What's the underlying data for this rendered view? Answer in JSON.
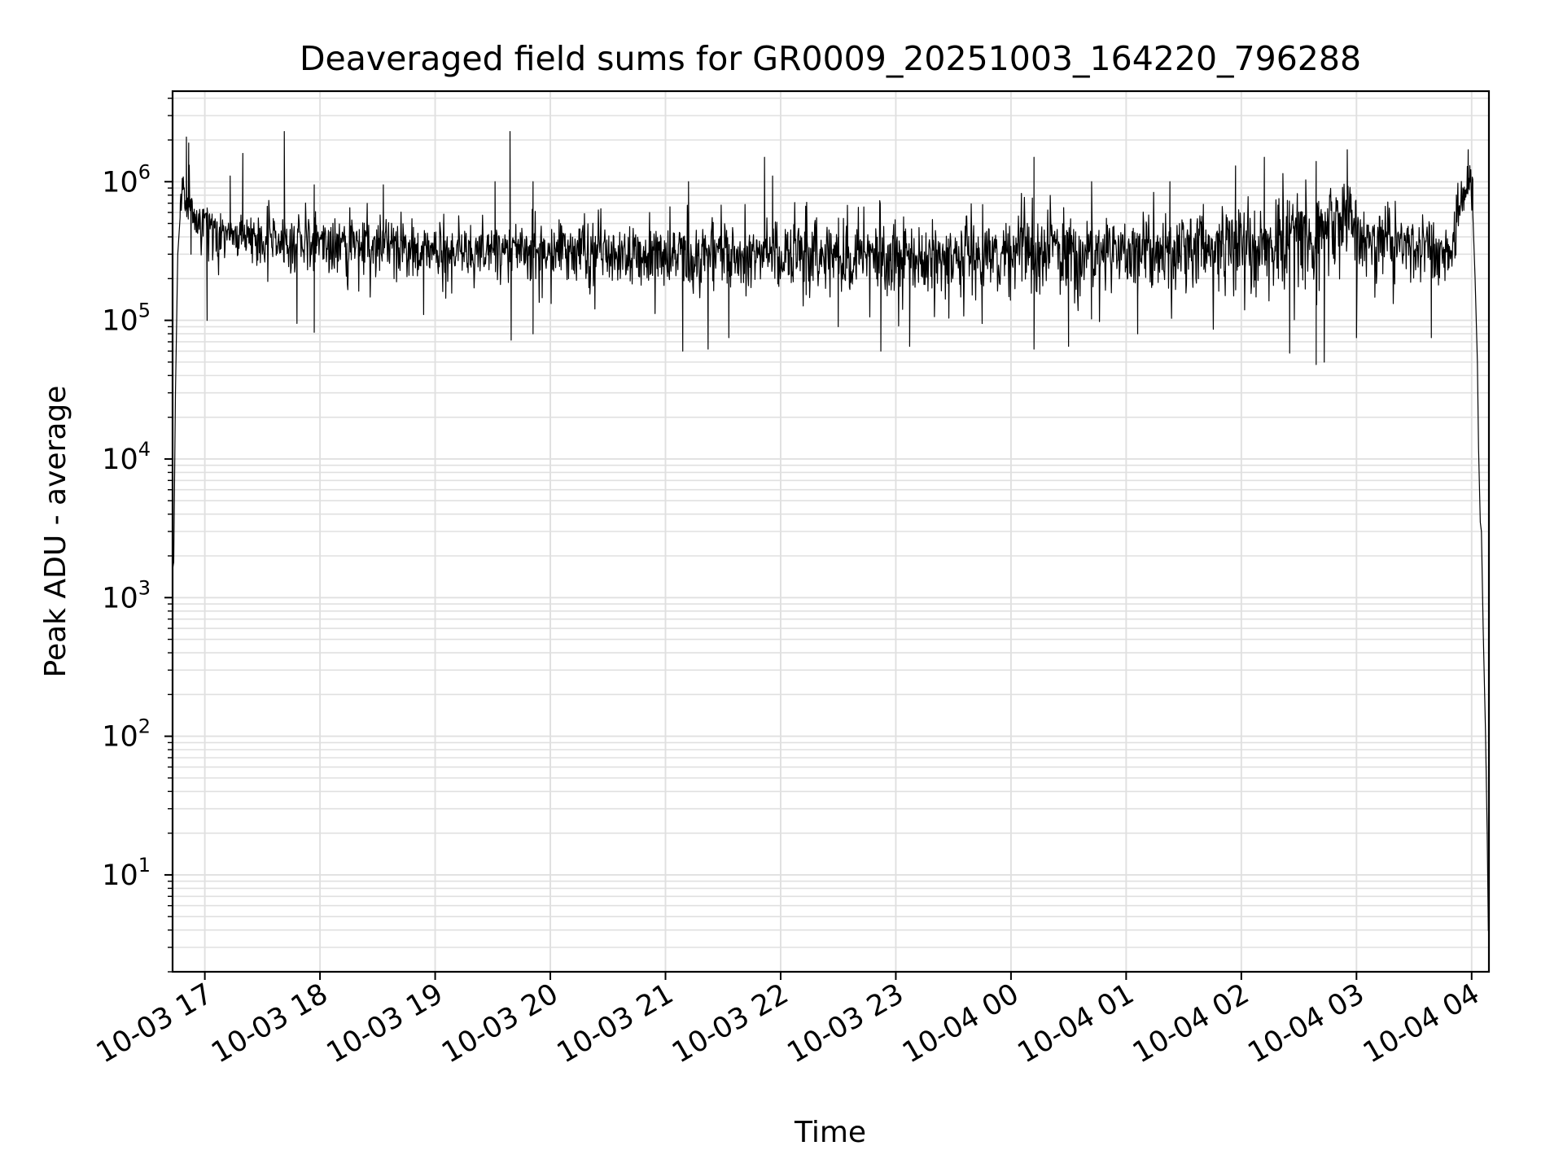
{
  "chart_data": {
    "type": "line",
    "title": "Deaveraged field sums for GR0009_20251003_164220_796288",
    "xlabel": "Time",
    "ylabel": "Peak ADU - average",
    "yscale": "log",
    "ylim": [
      2,
      4500000
    ],
    "xlim_hours": [
      16.72,
      28.15
    ],
    "grid": true,
    "line_color": "#000000",
    "grid_color": "#e0e0e0",
    "x_ticks": [
      {
        "hour": 17,
        "label": "10-03 17"
      },
      {
        "hour": 18,
        "label": "10-03 18"
      },
      {
        "hour": 19,
        "label": "10-03 19"
      },
      {
        "hour": 20,
        "label": "10-03 20"
      },
      {
        "hour": 21,
        "label": "10-03 21"
      },
      {
        "hour": 22,
        "label": "10-03 22"
      },
      {
        "hour": 23,
        "label": "10-03 23"
      },
      {
        "hour": 24,
        "label": "10-04 00"
      },
      {
        "hour": 25,
        "label": "10-04 01"
      },
      {
        "hour": 26,
        "label": "10-04 02"
      },
      {
        "hour": 27,
        "label": "10-04 03"
      },
      {
        "hour": 28,
        "label": "10-04 04"
      }
    ],
    "y_ticks": [
      {
        "value": 10,
        "base": "10",
        "exp": "1"
      },
      {
        "value": 100,
        "base": "10",
        "exp": "2"
      },
      {
        "value": 1000,
        "base": "10",
        "exp": "3"
      },
      {
        "value": 10000,
        "base": "10",
        "exp": "4"
      },
      {
        "value": 100000,
        "base": "10",
        "exp": "5"
      },
      {
        "value": 1000000,
        "base": "10",
        "exp": "6"
      }
    ],
    "series": [
      {
        "name": "deaveraged field sum",
        "start_ramp": [
          {
            "t": 16.72,
            "v": 1600
          },
          {
            "t": 16.73,
            "v": 1800
          },
          {
            "t": 16.745,
            "v": 30000
          },
          {
            "t": 16.765,
            "v": 300000
          },
          {
            "t": 16.785,
            "v": 550000
          }
        ],
        "envelope": [
          {
            "t": 16.8,
            "median": 900000,
            "low": 500000,
            "high": 2000000
          },
          {
            "t": 16.9,
            "median": 550000,
            "low": 250000,
            "high": 1000000
          },
          {
            "t": 17.3,
            "median": 400000,
            "low": 180000,
            "high": 700000
          },
          {
            "t": 18.0,
            "median": 380000,
            "low": 170000,
            "high": 700000
          },
          {
            "t": 19.0,
            "median": 330000,
            "low": 140000,
            "high": 600000
          },
          {
            "t": 20.0,
            "median": 320000,
            "low": 140000,
            "high": 600000
          },
          {
            "t": 21.0,
            "median": 300000,
            "low": 120000,
            "high": 650000
          },
          {
            "t": 22.0,
            "median": 300000,
            "low": 120000,
            "high": 650000
          },
          {
            "t": 23.0,
            "median": 290000,
            "low": 100000,
            "high": 700000
          },
          {
            "t": 24.0,
            "median": 300000,
            "low": 100000,
            "high": 750000
          },
          {
            "t": 25.0,
            "median": 310000,
            "low": 110000,
            "high": 800000
          },
          {
            "t": 26.0,
            "median": 350000,
            "low": 100000,
            "high": 1000000
          },
          {
            "t": 26.6,
            "median": 420000,
            "low": 90000,
            "high": 1100000
          },
          {
            "t": 26.95,
            "median": 600000,
            "low": 200000,
            "high": 1300000
          },
          {
            "t": 27.05,
            "median": 380000,
            "low": 150000,
            "high": 700000
          },
          {
            "t": 27.8,
            "median": 330000,
            "low": 130000,
            "high": 650000
          },
          {
            "t": 27.95,
            "median": 900000,
            "low": 500000,
            "high": 1500000
          },
          {
            "t": 28.0,
            "median": 1000000,
            "low": 600000,
            "high": 1600000
          }
        ],
        "spikes": [
          {
            "t": 16.84,
            "v": 2100000
          },
          {
            "t": 16.86,
            "v": 1900000
          },
          {
            "t": 17.22,
            "v": 1100000
          },
          {
            "t": 17.33,
            "v": 1600000
          },
          {
            "t": 17.69,
            "v": 2300000
          },
          {
            "t": 17.95,
            "v": 950000
          },
          {
            "t": 18.55,
            "v": 950000
          },
          {
            "t": 19.52,
            "v": 1000000
          },
          {
            "t": 19.65,
            "v": 2300000
          },
          {
            "t": 19.85,
            "v": 1000000
          },
          {
            "t": 21.2,
            "v": 1000000
          },
          {
            "t": 21.86,
            "v": 1500000
          },
          {
            "t": 21.93,
            "v": 1100000
          },
          {
            "t": 24.2,
            "v": 1500000
          },
          {
            "t": 24.7,
            "v": 1000000
          },
          {
            "t": 25.38,
            "v": 1000000
          },
          {
            "t": 25.95,
            "v": 1300000
          },
          {
            "t": 26.2,
            "v": 1500000
          },
          {
            "t": 26.65,
            "v": 1400000
          },
          {
            "t": 26.92,
            "v": 1700000
          },
          {
            "t": 27.97,
            "v": 1700000
          }
        ],
        "dips": [
          {
            "t": 16.88,
            "v": 300000
          },
          {
            "t": 17.02,
            "v": 100000
          },
          {
            "t": 17.8,
            "v": 95000
          },
          {
            "t": 17.95,
            "v": 82000
          },
          {
            "t": 18.9,
            "v": 110000
          },
          {
            "t": 19.66,
            "v": 72000
          },
          {
            "t": 19.85,
            "v": 80000
          },
          {
            "t": 21.15,
            "v": 60000
          },
          {
            "t": 21.37,
            "v": 62000
          },
          {
            "t": 21.55,
            "v": 75000
          },
          {
            "t": 22.5,
            "v": 90000
          },
          {
            "t": 22.87,
            "v": 60000
          },
          {
            "t": 23.12,
            "v": 65000
          },
          {
            "t": 24.2,
            "v": 62000
          },
          {
            "t": 24.5,
            "v": 65000
          },
          {
            "t": 25.1,
            "v": 80000
          },
          {
            "t": 26.42,
            "v": 58000
          },
          {
            "t": 26.65,
            "v": 48000
          },
          {
            "t": 26.72,
            "v": 50000
          },
          {
            "t": 27.0,
            "v": 75000
          },
          {
            "t": 27.65,
            "v": 75000
          }
        ],
        "end_decay": [
          {
            "t": 28.01,
            "v": 600000
          },
          {
            "t": 28.03,
            "v": 200000
          },
          {
            "t": 28.05,
            "v": 50000
          },
          {
            "t": 28.06,
            "v": 12000
          },
          {
            "t": 28.075,
            "v": 3500
          },
          {
            "t": 28.085,
            "v": 3000
          },
          {
            "t": 28.1,
            "v": 600
          },
          {
            "t": 28.12,
            "v": 110
          },
          {
            "t": 28.135,
            "v": 20
          },
          {
            "t": 28.145,
            "v": 4
          },
          {
            "t": 28.15,
            "v": 3.8
          }
        ],
        "noise_seed": 20251003
      }
    ]
  }
}
